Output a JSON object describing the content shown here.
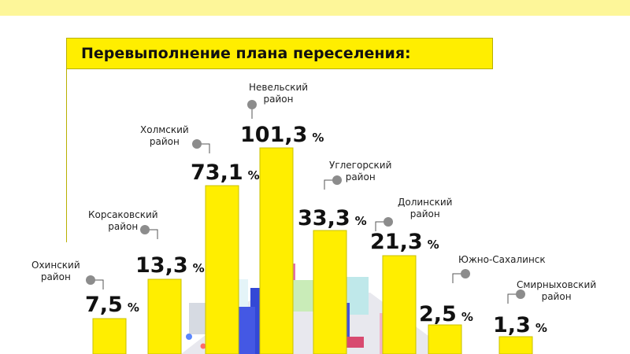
{
  "chart_data": {
    "type": "bar",
    "title": "Перевыполнение плана переселения:",
    "categories": [
      "Охинский\nрайон",
      "Корсаковский\nрайон",
      "Холмский\nрайон",
      "Невельский\nрайон",
      "Углегорский\nрайон",
      "Долинский\nрайон",
      "Южно-Сахалинск",
      "Смирныховский\nрайон"
    ],
    "values": [
      7.5,
      13.3,
      73.1,
      101.3,
      33.3,
      21.3,
      2.5,
      1.3
    ],
    "value_labels": [
      "7,5",
      "13,3",
      "73,1",
      "101,3",
      "33,3",
      "21,3",
      "2,5",
      "1,3"
    ],
    "unit": "%",
    "colors": {
      "bar": "#ffee00",
      "bar_edge": "#c9c000",
      "title_bg": "#ffee00",
      "top_band": "#fdf699"
    }
  }
}
